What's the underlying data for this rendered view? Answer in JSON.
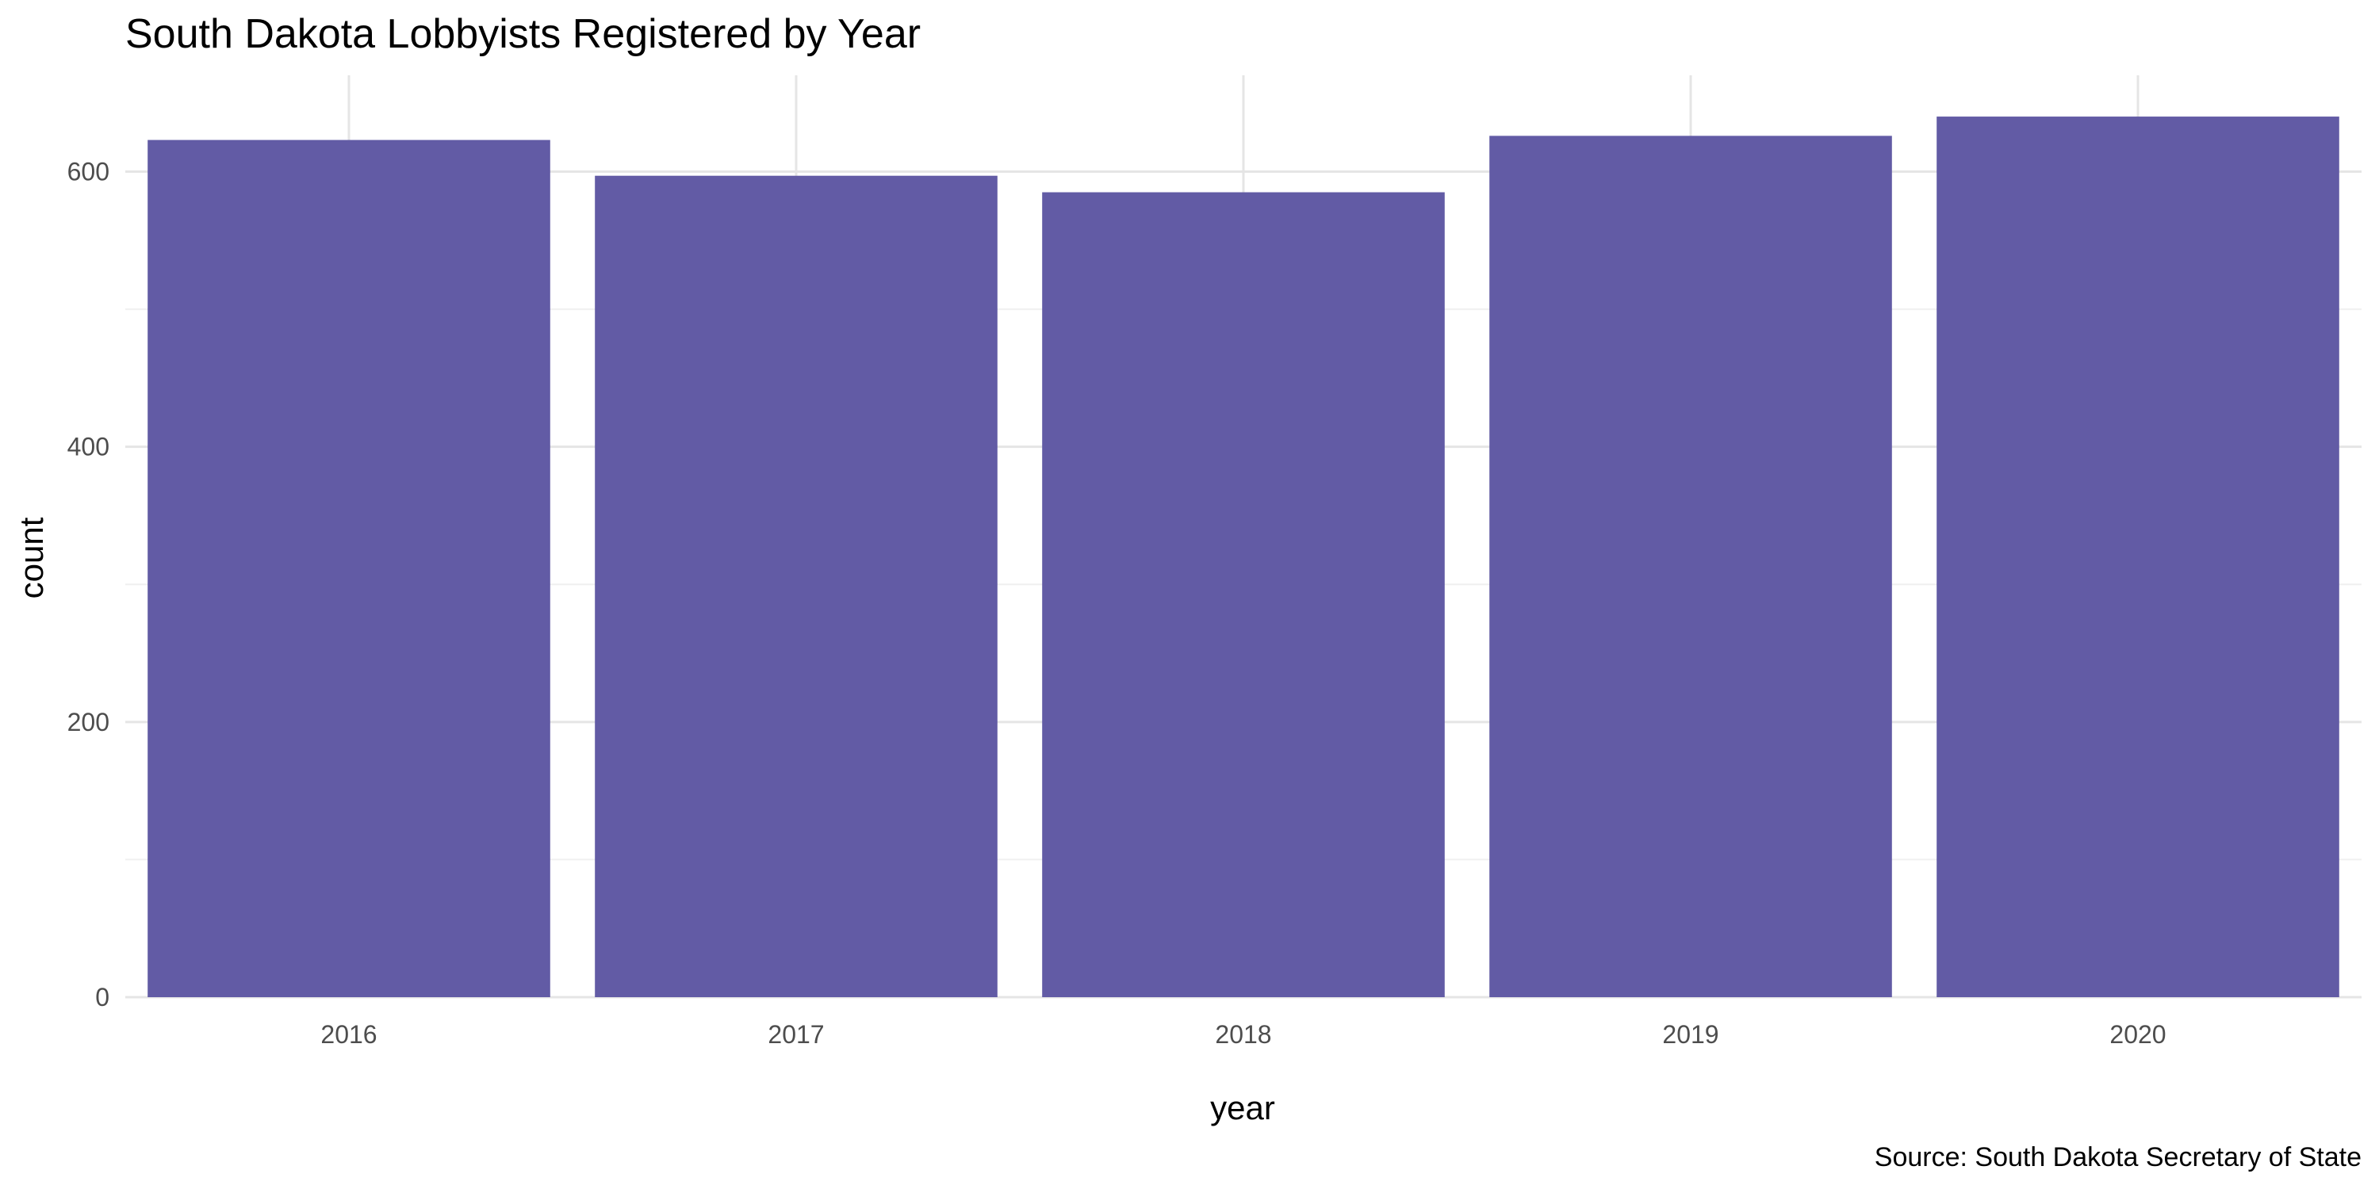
{
  "chart_data": {
    "type": "bar",
    "title": "South Dakota Lobbyists Registered by Year",
    "xlabel": "year",
    "ylabel": "count",
    "caption": "Source: South Dakota Secretary of State",
    "categories": [
      "2016",
      "2017",
      "2018",
      "2019",
      "2020"
    ],
    "values": [
      623,
      597,
      585,
      626,
      640
    ],
    "ylim": [
      0,
      670
    ],
    "yticks": [
      0,
      200,
      400,
      600
    ],
    "yticks_minor": [
      100,
      300,
      500
    ],
    "grid": true,
    "legend": "none",
    "bar_color": "#625ba5"
  }
}
